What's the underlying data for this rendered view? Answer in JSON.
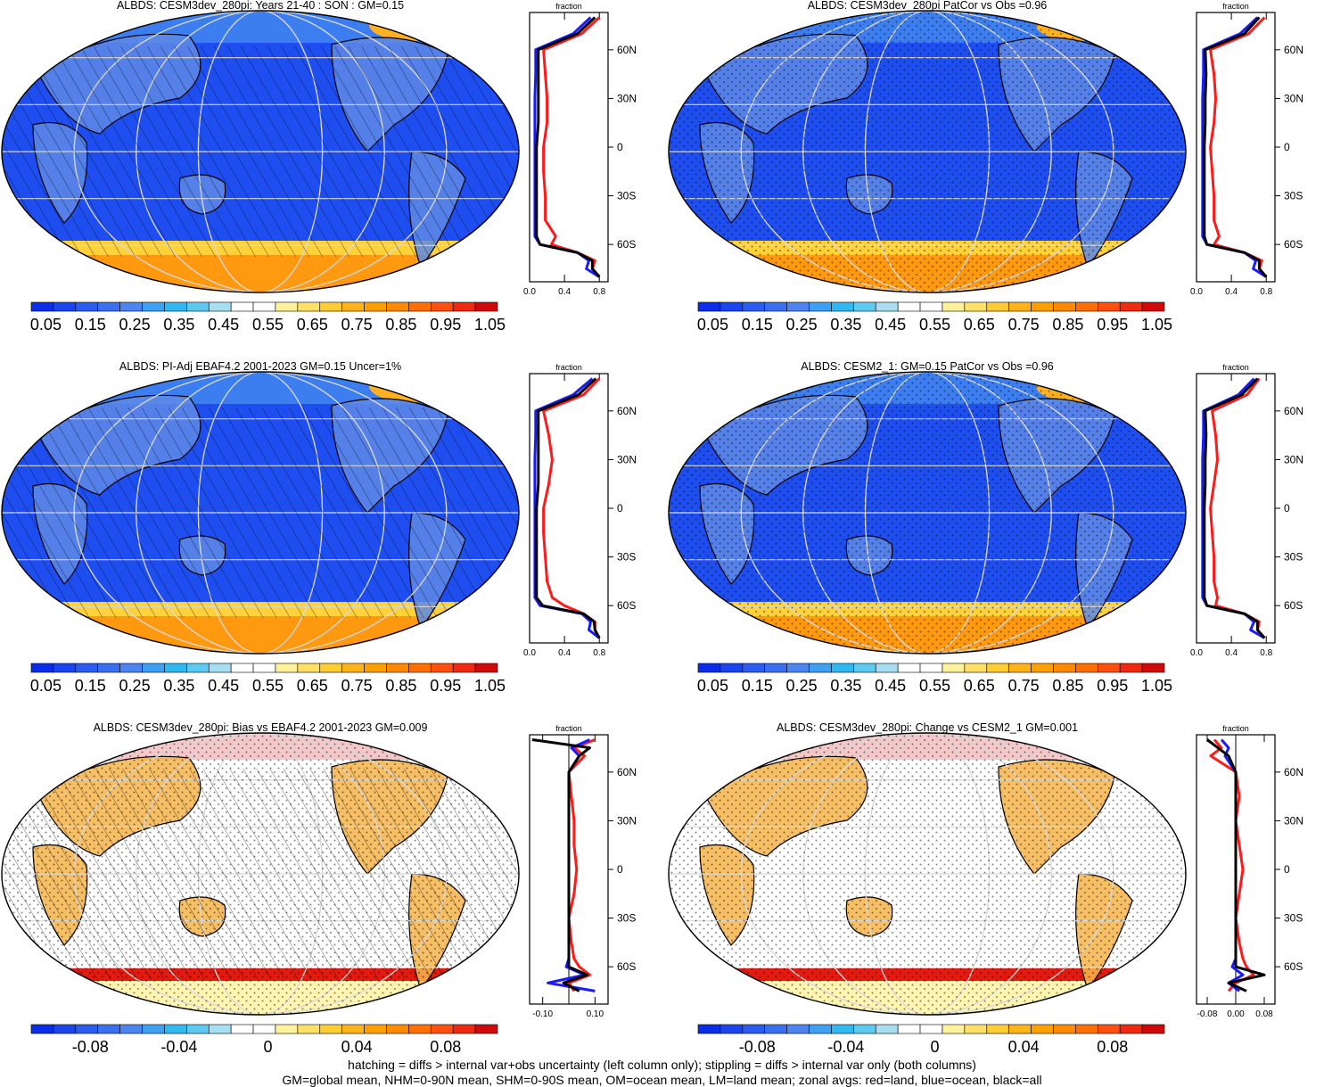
{
  "colorbars": {
    "absolute": {
      "colors": [
        "#0a2ee8",
        "#1a45ee",
        "#2a5cf0",
        "#3a6ff0",
        "#4c84f0",
        "#3da0f2",
        "#2fb8f2",
        "#5ecaf0",
        "#a8def2",
        "#ffffff",
        "#ffffff",
        "#fff29a",
        "#ffe066",
        "#ffcc33",
        "#ffb31a",
        "#ffa000",
        "#ff8a00",
        "#ff7000",
        "#ff5010",
        "#ee2a10",
        "#d00a0a"
      ],
      "tick_labels": [
        "0.05",
        "0.15",
        "0.25",
        "0.35",
        "0.45",
        "0.55",
        "0.65",
        "0.75",
        "0.85",
        "0.95",
        "1.05"
      ]
    },
    "difference": {
      "colors": [
        "#0a2ee8",
        "#1a45ee",
        "#2a5cf0",
        "#3a6ff0",
        "#4c84f0",
        "#3da0f2",
        "#2fb8f2",
        "#5ecaf0",
        "#a8def2",
        "#ffffff",
        "#ffffff",
        "#fff29a",
        "#ffe066",
        "#ffcc33",
        "#ffb31a",
        "#ffa000",
        "#ff8a00",
        "#ff7000",
        "#ff5010",
        "#ee2a10",
        "#d00a0a"
      ],
      "tick_labels": [
        "-0.08",
        "-0.04",
        "0",
        "0.04",
        "0.08"
      ]
    }
  },
  "chart_data": [
    {
      "type": "heatmap",
      "id": "p1",
      "title": "ALBDS: CESM3dev_280pi: Years 21-40 : SON : GM=0.15",
      "global_mean": 0.15,
      "kind": "absolute",
      "hatching": true,
      "stippling": false,
      "zonal_profile": {
        "xlabel": "fraction",
        "xlim": [
          0.0,
          0.9
        ],
        "xticks": [
          "0.0",
          "0.4",
          "0.8"
        ],
        "yticks": [
          "60N",
          "30N",
          "0",
          "30S",
          "60S"
        ],
        "lat": [
          80,
          70,
          60,
          45,
          30,
          15,
          0,
          -15,
          -30,
          -45,
          -55,
          -60,
          -65,
          -70,
          -75,
          -80
        ],
        "series": [
          {
            "color": "red",
            "values": [
              0.8,
              0.6,
              0.16,
              0.18,
              0.2,
              0.2,
              0.16,
              0.16,
              0.18,
              0.18,
              0.3,
              0.25,
              0.55,
              0.75,
              0.72,
              0.8
            ]
          },
          {
            "color": "blue",
            "values": [
              0.7,
              0.5,
              0.07,
              0.07,
              0.06,
              0.06,
              0.06,
              0.06,
              0.06,
              0.06,
              0.06,
              0.12,
              0.55,
              0.68,
              0.65,
              0.8
            ]
          },
          {
            "color": "black",
            "values": [
              0.75,
              0.55,
              0.1,
              0.1,
              0.1,
              0.1,
              0.08,
              0.08,
              0.08,
              0.08,
              0.08,
              0.12,
              0.55,
              0.72,
              0.72,
              0.8
            ]
          }
        ]
      }
    },
    {
      "type": "heatmap",
      "id": "p2",
      "title": "ALBDS: CESM3dev_280pi PatCor vs Obs =0.96",
      "kind": "absolute",
      "hatching": false,
      "stippling": true,
      "zonal_profile": {
        "xlabel": "fraction",
        "xlim": [
          0.0,
          0.9
        ],
        "xticks": [
          "0.0",
          "0.4",
          "0.8"
        ],
        "yticks": [
          "60N",
          "30N",
          "0",
          "30S",
          "60S"
        ],
        "lat": [
          80,
          70,
          60,
          45,
          30,
          15,
          0,
          -15,
          -30,
          -45,
          -55,
          -60,
          -65,
          -70,
          -75,
          -80
        ],
        "series": [
          {
            "color": "red",
            "values": [
              0.78,
              0.6,
              0.16,
              0.2,
              0.22,
              0.2,
              0.16,
              0.18,
              0.2,
              0.2,
              0.26,
              0.2,
              0.55,
              0.75,
              0.72,
              0.8
            ]
          },
          {
            "color": "blue",
            "values": [
              0.7,
              0.5,
              0.08,
              0.08,
              0.07,
              0.07,
              0.07,
              0.07,
              0.07,
              0.07,
              0.07,
              0.12,
              0.55,
              0.68,
              0.65,
              0.8
            ]
          },
          {
            "color": "black",
            "values": [
              0.72,
              0.55,
              0.1,
              0.11,
              0.1,
              0.1,
              0.09,
              0.09,
              0.09,
              0.09,
              0.09,
              0.12,
              0.55,
              0.72,
              0.72,
              0.8
            ]
          }
        ]
      }
    },
    {
      "type": "heatmap",
      "id": "p3",
      "title": "ALBDS: PI-Adj EBAF4.2 2001-2023 GM=0.15 Uncer=1%",
      "global_mean": 0.15,
      "kind": "absolute",
      "hatching": true,
      "stippling": false,
      "zonal_profile": {
        "xlabel": "fraction",
        "xlim": [
          0.0,
          0.9
        ],
        "xticks": [
          "0.0",
          "0.4",
          "0.8"
        ],
        "yticks": [
          "60N",
          "30N",
          "0",
          "30S",
          "60S"
        ],
        "lat": [
          80,
          70,
          60,
          45,
          30,
          15,
          0,
          -15,
          -30,
          -45,
          -55,
          -60,
          -65,
          -70,
          -75,
          -80
        ],
        "series": [
          {
            "color": "red",
            "values": [
              0.8,
              0.62,
              0.16,
              0.22,
              0.26,
              0.22,
              0.16,
              0.16,
              0.18,
              0.2,
              0.26,
              0.4,
              0.62,
              0.75,
              0.75,
              0.8
            ]
          },
          {
            "color": "blue",
            "values": [
              0.72,
              0.5,
              0.07,
              0.07,
              0.06,
              0.06,
              0.06,
              0.06,
              0.06,
              0.06,
              0.06,
              0.12,
              0.6,
              0.7,
              0.68,
              0.8
            ]
          },
          {
            "color": "black",
            "values": [
              0.76,
              0.56,
              0.1,
              0.1,
              0.1,
              0.1,
              0.08,
              0.08,
              0.08,
              0.08,
              0.08,
              0.15,
              0.62,
              0.74,
              0.75,
              0.8
            ]
          }
        ]
      }
    },
    {
      "type": "heatmap",
      "id": "p4",
      "title": "ALBDS: CESM2_1: GM=0.15 PatCor vs Obs =0.96",
      "global_mean": 0.15,
      "kind": "absolute",
      "hatching": false,
      "stippling": true,
      "zonal_profile": {
        "xlabel": "fraction",
        "xlim": [
          0.0,
          0.9
        ],
        "xticks": [
          "0.0",
          "0.4",
          "0.8"
        ],
        "yticks": [
          "60N",
          "30N",
          "0",
          "30S",
          "60S"
        ],
        "lat": [
          80,
          70,
          60,
          45,
          30,
          15,
          0,
          -15,
          -30,
          -45,
          -55,
          -60,
          -65,
          -70,
          -75,
          -80
        ],
        "series": [
          {
            "color": "red",
            "values": [
              0.72,
              0.58,
              0.18,
              0.22,
              0.24,
              0.2,
              0.16,
              0.18,
              0.2,
              0.2,
              0.24,
              0.22,
              0.55,
              0.72,
              0.7,
              0.78
            ]
          },
          {
            "color": "blue",
            "values": [
              0.66,
              0.48,
              0.08,
              0.08,
              0.07,
              0.07,
              0.07,
              0.07,
              0.07,
              0.07,
              0.07,
              0.12,
              0.55,
              0.66,
              0.62,
              0.78
            ]
          },
          {
            "color": "black",
            "values": [
              0.7,
              0.52,
              0.1,
              0.11,
              0.1,
              0.1,
              0.09,
              0.09,
              0.09,
              0.09,
              0.09,
              0.12,
              0.55,
              0.7,
              0.7,
              0.78
            ]
          }
        ]
      }
    },
    {
      "type": "heatmap",
      "id": "p5",
      "title": "ALBDS: CESM3dev_280pi: Bias vs EBAF4.2 2001-2023  GM=0.009",
      "global_mean": 0.009,
      "kind": "difference",
      "hatching": true,
      "stippling": true,
      "zonal_profile": {
        "xlabel": "fraction",
        "xlim": [
          -0.15,
          0.15
        ],
        "xticks": [
          "-0.10",
          "0.10"
        ],
        "yticks": [
          "60N",
          "30N",
          "0",
          "30S",
          "60S"
        ],
        "lat": [
          80,
          75,
          70,
          60,
          45,
          30,
          15,
          0,
          -15,
          -30,
          -45,
          -55,
          -60,
          -65,
          -70,
          -75
        ],
        "series": [
          {
            "color": "red",
            "values": [
              0.1,
              0.02,
              0.06,
              0.0,
              0.01,
              0.02,
              0.02,
              0.03,
              0.02,
              0.0,
              0.01,
              0.02,
              0.04,
              0.08,
              0.0,
              0.02
            ]
          },
          {
            "color": "blue",
            "values": [
              0.08,
              0.01,
              0.04,
              0.0,
              0.0,
              0.0,
              0.0,
              0.0,
              0.0,
              0.0,
              0.0,
              0.0,
              -0.01,
              0.06,
              -0.08,
              0.1
            ]
          },
          {
            "color": "black",
            "values": [
              -0.14,
              0.08,
              0.04,
              0.0,
              0.0,
              0.0,
              0.0,
              0.0,
              0.0,
              0.0,
              0.0,
              0.0,
              0.0,
              0.07,
              -0.02,
              0.04
            ]
          }
        ]
      }
    },
    {
      "type": "heatmap",
      "id": "p6",
      "title": "ALBDS: CESM3dev_280pi: Change vs CESM2_1 GM=0.001",
      "global_mean": 0.001,
      "kind": "difference",
      "hatching": false,
      "stippling": true,
      "zonal_profile": {
        "xlabel": "fraction",
        "xlim": [
          -0.11,
          0.11
        ],
        "xticks": [
          "-0.08",
          "0.00",
          "0.08"
        ],
        "yticks": [
          "60N",
          "30N",
          "0",
          "30S",
          "60S"
        ],
        "lat": [
          80,
          75,
          70,
          60,
          45,
          30,
          15,
          0,
          -15,
          -30,
          -45,
          -55,
          -60,
          -65,
          -70,
          -75
        ],
        "series": [
          {
            "color": "red",
            "values": [
              -0.06,
              -0.04,
              -0.07,
              0.0,
              0.01,
              0.0,
              0.01,
              0.02,
              0.01,
              0.0,
              0.01,
              0.02,
              0.03,
              0.05,
              0.0,
              -0.02
            ]
          },
          {
            "color": "blue",
            "values": [
              -0.04,
              -0.02,
              -0.03,
              0.0,
              0.0,
              0.0,
              0.0,
              0.0,
              0.0,
              0.0,
              0.0,
              0.0,
              -0.01,
              0.02,
              -0.02,
              0.01
            ]
          },
          {
            "color": "black",
            "values": [
              -0.08,
              -0.05,
              -0.02,
              0.0,
              0.0,
              0.0,
              0.0,
              0.0,
              0.0,
              0.0,
              0.0,
              0.0,
              0.0,
              0.08,
              -0.02,
              0.03
            ]
          }
        ]
      }
    }
  ],
  "footer": {
    "line1": "hatching = diffs > internal var+obs uncertainty (left column only); stippling = diffs > internal var only (both columns)",
    "line2": "GM=global mean, NHM=0-90N mean, SHM=0-90S mean, OM=ocean mean, LM=land mean; zonal avgs: red=land, blue=ocean, black=all"
  }
}
